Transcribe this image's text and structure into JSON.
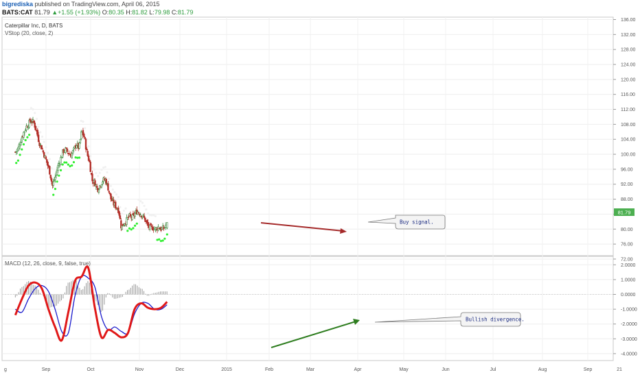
{
  "header": {
    "user": "bigrediska",
    "published": " published on TradingView.com, April 06, 2015",
    "symbol": "BATS:CAT",
    "last": "81.79",
    "up_glyph": "▲",
    "change": "+1.55 (+1.93%)",
    "o_label": "O:",
    "o_val": "80.35",
    "h_label": "H:",
    "h_val": "81.82",
    "l_label": "L:",
    "l_val": "79.98",
    "c_label": "C:",
    "c_val": "81.79"
  },
  "colors": {
    "up_candle": "#3c8a3e",
    "down_candle": "#b3312b",
    "vstop": "#33ee33",
    "macd_line": "#e01818",
    "signal_line": "#1a1acc",
    "histogram": "#999999",
    "arrow_red": "#a52a2a",
    "arrow_green": "#2e7d1f",
    "price_label_bg": "#4caf50"
  },
  "price_pane": {
    "title": "Caterpillar Inc, D, BATS",
    "indicator": "VStop (20, close, 2)",
    "axis_ticks": [
      "136.00",
      "132.00",
      "128.00",
      "124.00",
      "120.00",
      "116.00",
      "112.00",
      "108.00",
      "104.00",
      "100.00",
      "96.00",
      "92.00",
      "88.00",
      "84.00",
      "80.00",
      "76.00",
      "72.00"
    ],
    "last_price_label": "81.79",
    "annotation": "Buy signal."
  },
  "macd_pane": {
    "title": "MACD (12, 26, close, 9, false, true)",
    "axis_ticks": [
      "2.0000",
      "1.0000",
      "0.0000",
      "-1.0000",
      "-2.0000",
      "-3.0000",
      "-4.0000"
    ],
    "annotation": "Bullish divergence."
  },
  "time_axis": {
    "labels": [
      "g",
      "Sep",
      "Oct",
      "Nov",
      "Dec",
      "2015",
      "Feb",
      "Mar",
      "Apr",
      "May",
      "Jun",
      "Jul",
      "Aug",
      "Sep",
      "21"
    ]
  },
  "chart_data": [
    {
      "type": "candlestick",
      "title": "Caterpillar Inc, D, BATS",
      "ylim": [
        70,
        138
      ],
      "x_range": [
        "2014-08-20",
        "2015-04-06"
      ],
      "close_series": [
        {
          "date": "2014-08-20",
          "close": 100.6
        },
        {
          "date": "2014-08-24",
          "close": 101.4
        },
        {
          "date": "2014-08-28",
          "close": 103.6
        },
        {
          "date": "2014-09-01",
          "close": 105.6
        },
        {
          "date": "2014-09-05",
          "close": 107.2
        },
        {
          "date": "2014-09-09",
          "close": 108.2
        },
        {
          "date": "2014-09-13",
          "close": 109.0
        },
        {
          "date": "2014-09-17",
          "close": 108.4
        },
        {
          "date": "2014-09-21",
          "close": 106.2
        },
        {
          "date": "2014-09-25",
          "close": 103.2
        },
        {
          "date": "2014-09-29",
          "close": 101.6
        },
        {
          "date": "2014-10-03",
          "close": 99.6
        },
        {
          "date": "2014-10-07",
          "close": 97.6
        },
        {
          "date": "2014-10-11",
          "close": 95.2
        },
        {
          "date": "2014-10-15",
          "close": 91.6
        },
        {
          "date": "2014-10-19",
          "close": 93.8
        },
        {
          "date": "2014-10-23",
          "close": 96.6
        },
        {
          "date": "2014-10-27",
          "close": 98.6
        },
        {
          "date": "2014-10-31",
          "close": 100.8
        },
        {
          "date": "2014-11-04",
          "close": 101.2
        },
        {
          "date": "2014-11-08",
          "close": 100.4
        },
        {
          "date": "2014-11-12",
          "close": 99.8
        },
        {
          "date": "2014-11-16",
          "close": 101.0
        },
        {
          "date": "2014-11-20",
          "close": 102.8
        },
        {
          "date": "2014-11-24",
          "close": 101.6
        },
        {
          "date": "2014-11-28",
          "close": 106.2
        },
        {
          "date": "2014-12-02",
          "close": 104.6
        },
        {
          "date": "2014-12-06",
          "close": 100.4
        },
        {
          "date": "2014-12-10",
          "close": 97.8
        },
        {
          "date": "2014-12-14",
          "close": 93.0
        },
        {
          "date": "2014-12-18",
          "close": 92.4
        },
        {
          "date": "2014-12-22",
          "close": 90.6
        },
        {
          "date": "2014-12-26",
          "close": 91.8
        },
        {
          "date": "2014-12-30",
          "close": 93.0
        },
        {
          "date": "2015-01-03",
          "close": 93.2
        },
        {
          "date": "2015-01-07",
          "close": 91.0
        },
        {
          "date": "2015-01-11",
          "close": 88.2
        },
        {
          "date": "2015-01-15",
          "close": 86.8
        },
        {
          "date": "2015-01-19",
          "close": 86.0
        },
        {
          "date": "2015-01-23",
          "close": 85.0
        },
        {
          "date": "2015-01-27",
          "close": 80.4
        },
        {
          "date": "2015-01-31",
          "close": 81.6
        },
        {
          "date": "2015-02-04",
          "close": 82.4
        },
        {
          "date": "2015-02-08",
          "close": 83.4
        },
        {
          "date": "2015-02-12",
          "close": 83.0
        },
        {
          "date": "2015-02-16",
          "close": 84.0
        },
        {
          "date": "2015-02-20",
          "close": 84.8
        },
        {
          "date": "2015-02-24",
          "close": 84.2
        },
        {
          "date": "2015-02-28",
          "close": 83.6
        },
        {
          "date": "2015-03-04",
          "close": 82.4
        },
        {
          "date": "2015-03-08",
          "close": 80.8
        },
        {
          "date": "2015-03-12",
          "close": 80.2
        },
        {
          "date": "2015-03-16",
          "close": 80.4
        },
        {
          "date": "2015-03-20",
          "close": 80.0
        },
        {
          "date": "2015-03-24",
          "close": 80.6
        },
        {
          "date": "2015-03-28",
          "close": 80.0
        },
        {
          "date": "2015-04-01",
          "close": 80.2
        },
        {
          "date": "2015-04-06",
          "close": 81.79
        }
      ],
      "last": {
        "open": 80.35,
        "high": 81.82,
        "low": 79.98,
        "close": 81.79
      }
    },
    {
      "type": "line",
      "title": "MACD (12, 26, close, 9, false, true)",
      "ylim": [
        -4.5,
        2.5
      ],
      "x": [
        "2014-08-20",
        "2014-08-30",
        "2014-09-09",
        "2014-09-19",
        "2014-09-29",
        "2014-10-09",
        "2014-10-19",
        "2014-10-29",
        "2014-11-08",
        "2014-11-18",
        "2014-11-28",
        "2014-12-08",
        "2014-12-18",
        "2014-12-28",
        "2015-01-07",
        "2015-01-17",
        "2015-01-27",
        "2015-02-06",
        "2015-02-16",
        "2015-02-26",
        "2015-03-08",
        "2015-03-18",
        "2015-03-28",
        "2015-04-06"
      ],
      "series": [
        {
          "values": [
            -1.4,
            -0.3,
            0.6,
            0.8,
            0.4,
            -1.0,
            -2.2,
            -3.1,
            -1.2,
            0.9,
            1.2,
            1.8,
            -0.9,
            -2.9,
            -2.4,
            -2.6,
            -2.9,
            -2.6,
            -1.0,
            -0.6,
            -0.9,
            -1.0,
            -0.9,
            -0.5
          ]
        },
        {
          "values": [
            -1.0,
            -1.2,
            -0.3,
            0.4,
            0.6,
            0.2,
            -1.0,
            -2.5,
            -2.6,
            -0.1,
            1.2,
            1.1,
            0.5,
            -1.5,
            -2.4,
            -2.2,
            -2.5,
            -2.6,
            -1.3,
            -0.6,
            -0.6,
            -1.0,
            -1.0,
            -0.7
          ]
        },
        {
          "values": [
            -0.2,
            0.5,
            0.9,
            0.6,
            0.0,
            -0.9,
            -0.8,
            -0.4,
            0.8,
            1.0,
            0.3,
            0.9,
            -0.4,
            -1.2,
            0.1,
            -0.3,
            -0.2,
            0.3,
            0.7,
            0.4,
            -0.1,
            0.1,
            0.2,
            0.2
          ]
        }
      ]
    }
  ]
}
